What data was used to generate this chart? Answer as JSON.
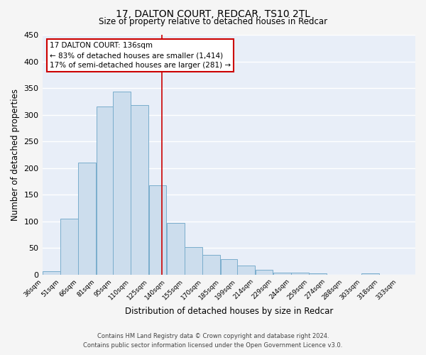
{
  "title": "17, DALTON COURT, REDCAR, TS10 2TL",
  "subtitle": "Size of property relative to detached houses in Redcar",
  "xlabel": "Distribution of detached houses by size in Redcar",
  "ylabel": "Number of detached properties",
  "bar_left_edges": [
    36,
    51,
    66,
    81,
    95,
    110,
    125,
    140,
    155,
    170,
    185,
    199,
    214,
    229,
    244,
    259,
    274,
    288,
    303,
    318
  ],
  "bar_widths": [
    15,
    15,
    15,
    14,
    15,
    15,
    15,
    15,
    15,
    15,
    14,
    15,
    15,
    15,
    15,
    15,
    14,
    15,
    15,
    15
  ],
  "bar_heights": [
    6,
    105,
    210,
    315,
    344,
    318,
    167,
    97,
    51,
    37,
    29,
    17,
    9,
    4,
    4,
    2,
    0,
    0,
    2,
    0
  ],
  "tick_labels": [
    "36sqm",
    "51sqm",
    "66sqm",
    "81sqm",
    "95sqm",
    "110sqm",
    "125sqm",
    "140sqm",
    "155sqm",
    "170sqm",
    "185sqm",
    "199sqm",
    "214sqm",
    "229sqm",
    "244sqm",
    "259sqm",
    "274sqm",
    "288sqm",
    "303sqm",
    "318sqm",
    "333sqm"
  ],
  "bar_color": "#ccdded",
  "bar_edge_color": "#7aadcc",
  "plot_bg_color": "#e8eef8",
  "grid_color": "#ffffff",
  "vline_x": 136,
  "vline_color": "#cc0000",
  "ylim": [
    0,
    450
  ],
  "yticks": [
    0,
    50,
    100,
    150,
    200,
    250,
    300,
    350,
    400,
    450
  ],
  "annotation_title": "17 DALTON COURT: 136sqm",
  "annotation_line1": "← 83% of detached houses are smaller (1,414)",
  "annotation_line2": "17% of semi-detached houses are larger (281) →",
  "annotation_box_color": "#cc0000",
  "fig_bg_color": "#f5f5f5",
  "footer_line1": "Contains HM Land Registry data © Crown copyright and database right 2024.",
  "footer_line2": "Contains public sector information licensed under the Open Government Licence v3.0."
}
